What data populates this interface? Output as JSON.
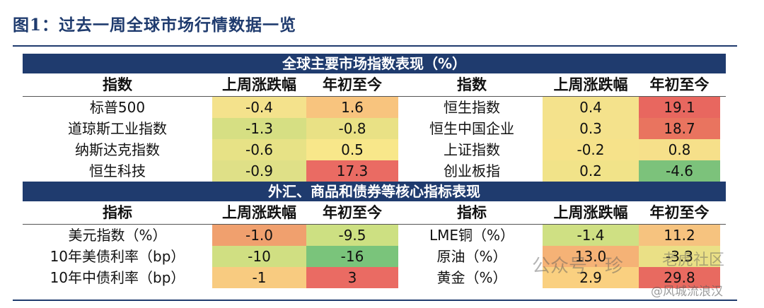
{
  "title": "图1：过去一周全球市场行情数据一览",
  "section1": {
    "banner": "全球主要市场指数表现（%）",
    "headers": [
      "指数",
      "上周涨跌幅",
      "年初至今",
      "指数",
      "上周涨跌幅",
      "年初至今"
    ],
    "rows": [
      {
        "left": {
          "name": "标普500",
          "wk": "-0.4",
          "ytd": "1.6"
        },
        "right": {
          "name": "恒生指数",
          "wk": "0.4",
          "ytd": "19.1"
        }
      },
      {
        "left": {
          "name": "道琼斯工业指数",
          "wk": "-1.3",
          "ytd": "-0.8"
        },
        "right": {
          "name": "恒生中国企业",
          "wk": "0.3",
          "ytd": "18.7"
        }
      },
      {
        "left": {
          "name": "纳斯达克指数",
          "wk": "-0.6",
          "ytd": "0.5"
        },
        "right": {
          "name": "上证指数",
          "wk": "-0.2",
          "ytd": "0.8"
        }
      },
      {
        "left": {
          "name": "恒生科技",
          "wk": "-0.9",
          "ytd": "17.3"
        },
        "right": {
          "name": "创业板指",
          "wk": "0.2",
          "ytd": "-4.6"
        }
      }
    ]
  },
  "section2": {
    "banner": "外汇、商品和债券等核心指标表现",
    "headers": [
      "指标",
      "上周涨跌幅",
      "年初至今",
      "指标",
      "上周涨跌幅",
      "年初至今"
    ],
    "rows": [
      {
        "left": {
          "name": "美元指数（%）",
          "wk": "-1.0",
          "ytd": "-9.5"
        },
        "right": {
          "name": "LME铜（%）",
          "wk": "-1.4",
          "ytd": "11.2"
        }
      },
      {
        "left": {
          "name": "10年美债利率（bp）",
          "wk": "-10",
          "ytd": "-16"
        },
        "right": {
          "name": "原油（%）",
          "wk": "13.0",
          "ytd": "-3.3"
        }
      },
      {
        "left": {
          "name": "10年中债利率（bp）",
          "wk": "-1",
          "ytd": "3"
        },
        "right": {
          "name": "黄金（%）",
          "wk": "2.9",
          "ytd": "29.8"
        }
      }
    ]
  },
  "watermark": {
    "wechat": "公众号 · 珍",
    "brand": "老虎社区",
    "weibo": "@风城流浪汉"
  },
  "colors": {
    "banner": "#1f3b6e",
    "cells": {
      "s1": [
        [
          "#f4e28c",
          "#f8c47e",
          "#f4e28c",
          "#e8675f"
        ],
        [
          "#d6df83",
          "#e9e185",
          "#f4e28c",
          "#e9745f"
        ],
        [
          "#e7e286",
          "#f8e78a",
          "#f6e28a",
          "#f6e08a"
        ],
        [
          "#dfe087",
          "#ea6b63",
          "#f1e389",
          "#7cc27b"
        ]
      ],
      "s2": [
        [
          "#f0a06e",
          "#cde082",
          "#cfe083",
          "#f6c37f"
        ],
        [
          "#d0df82",
          "#7ac47b",
          "#f5b276",
          "#eae086"
        ],
        [
          "#f8cb80",
          "#ea6b63",
          "#fad080",
          "#e86a60"
        ]
      ]
    }
  }
}
